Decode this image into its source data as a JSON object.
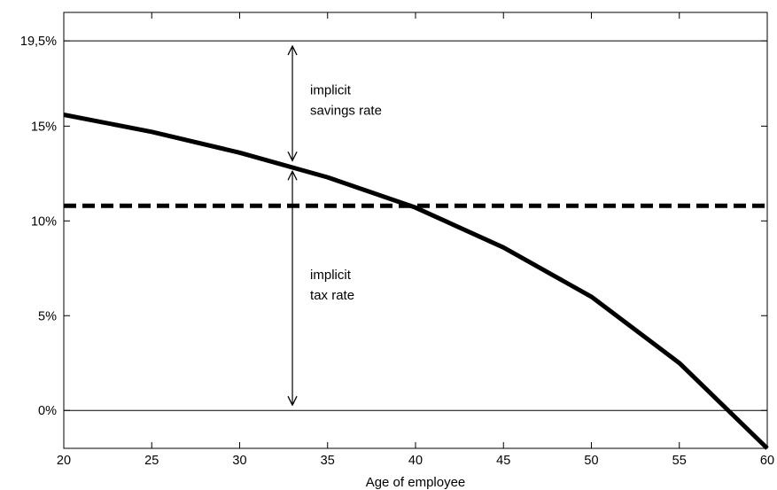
{
  "chart_data": {
    "type": "line",
    "xlabel": "Age of employee",
    "ylabel": "",
    "xlim": [
      20,
      60
    ],
    "ylim": [
      -2,
      21
    ],
    "x_ticks": [
      20,
      25,
      30,
      35,
      40,
      45,
      50,
      55,
      60
    ],
    "x_tick_labels": [
      "20",
      "25",
      "30",
      "35",
      "40",
      "45",
      "50",
      "55",
      "60"
    ],
    "y_ticks": [
      0,
      5,
      10,
      15,
      19.5
    ],
    "y_tick_labels": [
      "0%",
      "5%",
      "10%",
      "15%",
      "19,5%"
    ],
    "reference_lines": [
      0,
      19.5
    ],
    "grid": false,
    "series": [
      {
        "style": "solid",
        "color": "#000000",
        "x": [
          20,
          25,
          30,
          35,
          40,
          45,
          50,
          55,
          60
        ],
        "y": [
          15.6,
          14.7,
          13.6,
          12.3,
          10.7,
          8.6,
          6.0,
          2.5,
          -2.0
        ]
      },
      {
        "style": "dashed",
        "color": "#000000",
        "x": [
          20,
          60
        ],
        "y": [
          10.8,
          10.8
        ]
      }
    ],
    "annotations": [
      {
        "lines": [
          "implicit",
          "savings rate"
        ],
        "arrow_x": 33,
        "from": 19.5,
        "to": 12.9
      },
      {
        "lines": [
          "implicit",
          "tax rate"
        ],
        "arrow_x": 33,
        "from": 12.9,
        "to": 0
      }
    ]
  }
}
